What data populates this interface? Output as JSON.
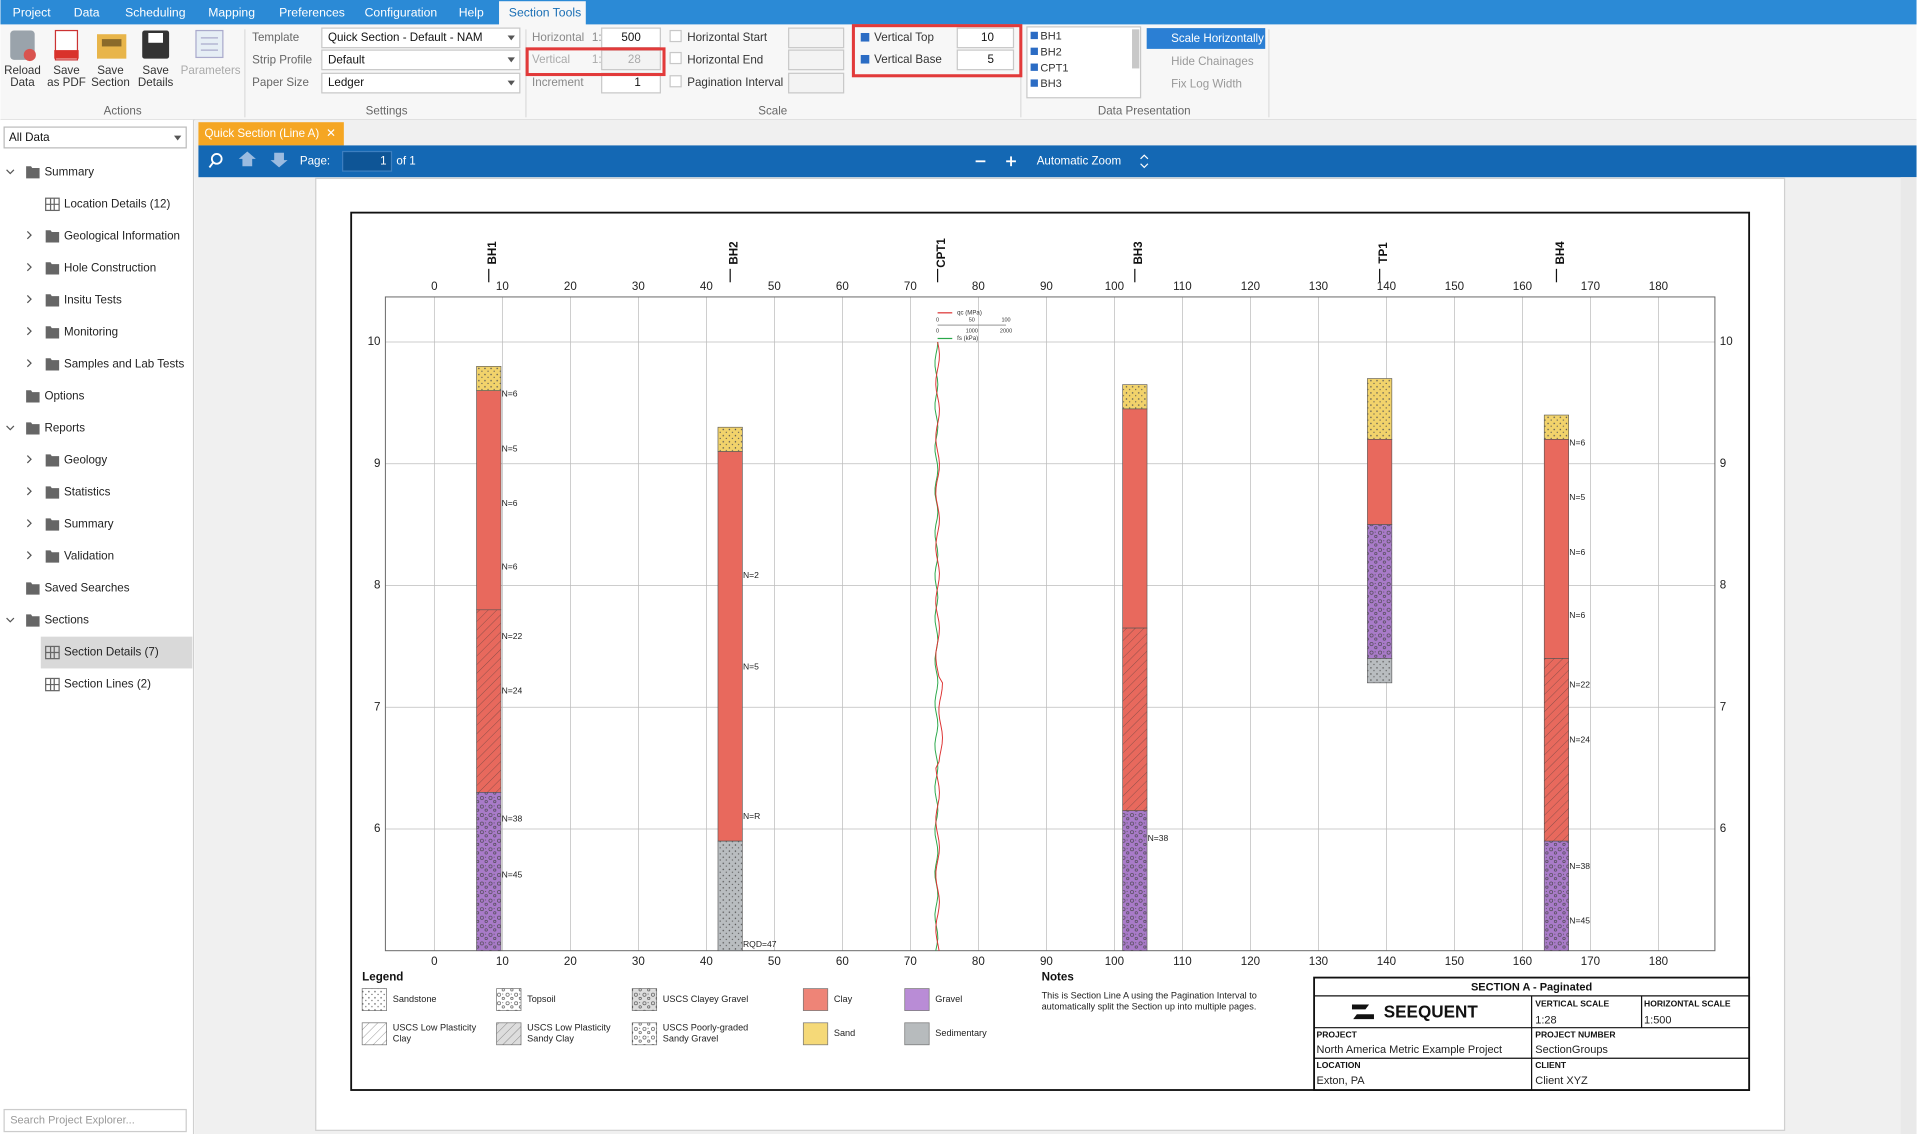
{
  "menu": [
    "Project",
    "Data",
    "Scheduling",
    "Mapping",
    "Preferences",
    "Configuration",
    "Help",
    "Section Tools"
  ],
  "ribbon": {
    "actions": {
      "label": "Actions",
      "buttons": [
        [
          "Reload",
          "Data"
        ],
        [
          "Save",
          "as PDF"
        ],
        [
          "Save",
          "Section"
        ],
        [
          "Save",
          "Details"
        ],
        [
          "Parameters"
        ]
      ]
    },
    "settings": {
      "label": "Settings",
      "template": {
        "label": "Template",
        "value": "Quick Section - Default - NAM"
      },
      "strip_profile": {
        "label": "Strip Profile",
        "value": "Default"
      },
      "paper_size": {
        "label": "Paper Size",
        "value": "Ledger"
      }
    },
    "scale": {
      "label": "Scale",
      "horizontal": {
        "label": "Horizontal",
        "prefix": "1:",
        "value": 500
      },
      "vertical": {
        "label": "Vertical",
        "prefix": "1:",
        "value": 28
      },
      "increment": {
        "label": "Increment",
        "value": 1
      },
      "checks": [
        "Horizontal Start",
        "Horizontal End",
        "Pagination Interval"
      ],
      "vertical_top": {
        "label": "Vertical Top",
        "value": 10
      },
      "vertical_base": {
        "label": "Vertical Base",
        "value": 5
      }
    },
    "data_presentation": {
      "label": "Data Presentation",
      "holes": [
        "BH1",
        "BH2",
        "CPT1",
        "BH3"
      ],
      "options": [
        "Scale Horizontally",
        "Hide Chainages",
        "Fix Log Width"
      ]
    }
  },
  "explorer": {
    "filter": "All Data",
    "search": "Search Project Explorer...",
    "tree": [
      {
        "label": "Summary",
        "children": [
          {
            "label": "Location Details (12)",
            "kind": "table"
          },
          {
            "label": "Geological Information",
            "collapsed": true
          },
          {
            "label": "Hole Construction",
            "collapsed": true
          },
          {
            "label": "Insitu Tests",
            "collapsed": true
          },
          {
            "label": "Monitoring",
            "collapsed": true
          },
          {
            "label": "Samples and Lab Tests",
            "collapsed": true
          }
        ]
      },
      {
        "label": "Options"
      },
      {
        "label": "Reports",
        "children": [
          {
            "label": "Geology",
            "collapsed": true
          },
          {
            "label": "Statistics",
            "collapsed": true
          },
          {
            "label": "Summary",
            "collapsed": true
          },
          {
            "label": "Validation",
            "collapsed": true
          }
        ]
      },
      {
        "label": "Saved Searches"
      },
      {
        "label": "Sections",
        "children": [
          {
            "label": "Section Details (7)",
            "kind": "table",
            "selected": true
          },
          {
            "label": "Section Lines (2)",
            "kind": "table"
          }
        ]
      }
    ]
  },
  "document": {
    "tab": "Quick Section (Line A)",
    "page_label": "Page:",
    "page": 1,
    "of": "of 1",
    "zoom": "Automatic Zoom"
  },
  "section": {
    "xlim": [
      -7.2,
      188.3
    ],
    "ylim": [
      5,
      10.37
    ],
    "xticks": [
      0,
      10,
      20,
      30,
      40,
      50,
      60,
      70,
      80,
      90,
      100,
      110,
      120,
      130,
      140,
      150,
      160,
      170,
      180
    ],
    "yticks": [
      6,
      7,
      8,
      9,
      10
    ],
    "holes": [
      {
        "name": "BH1",
        "x": 8,
        "layers": [
          {
            "top": 9.8,
            "base": 9.6,
            "color": "#f2d36b",
            "pattern": "dots"
          },
          {
            "top": 9.6,
            "base": 7.8,
            "color": "#e8695d"
          },
          {
            "top": 7.8,
            "base": 6.3,
            "color": "#e8695d",
            "pattern": "hatch"
          },
          {
            "top": 6.3,
            "base": 5,
            "color": "#a97bc9",
            "pattern": "gravel"
          }
        ],
        "tests": [
          {
            "label": "N=6",
            "y": 9.57
          },
          {
            "label": "N=5",
            "y": 9.12
          },
          {
            "label": "N=6",
            "y": 8.67
          },
          {
            "label": "N=6",
            "y": 8.15
          },
          {
            "label": "N=22",
            "y": 7.58
          },
          {
            "label": "N=24",
            "y": 7.13
          },
          {
            "label": "N=38",
            "y": 6.08
          },
          {
            "label": "N=45",
            "y": 5.62
          }
        ]
      },
      {
        "name": "BH2",
        "x": 43.5,
        "layers": [
          {
            "top": 9.3,
            "base": 9.1,
            "color": "#f2d36b",
            "pattern": "dots"
          },
          {
            "top": 9.1,
            "base": 5.9,
            "color": "#e8695d"
          },
          {
            "top": 5.9,
            "base": 5,
            "color": "#b9bdc0",
            "pattern": "dots"
          }
        ],
        "tests": [
          {
            "label": "N=2",
            "y": 8.08
          },
          {
            "label": "N=5",
            "y": 7.33
          },
          {
            "label": "N=R",
            "y": 6.1
          },
          {
            "label": "RQD=47",
            "y": 5.05
          }
        ]
      },
      {
        "name": "BH3",
        "x": 103,
        "layers": [
          {
            "top": 9.65,
            "base": 9.45,
            "color": "#f2d36b",
            "pattern": "dots"
          },
          {
            "top": 9.45,
            "base": 7.65,
            "color": "#e8695d"
          },
          {
            "top": 7.65,
            "base": 6.15,
            "color": "#e8695d",
            "pattern": "hatch"
          },
          {
            "top": 6.15,
            "base": 5,
            "color": "#a97bc9",
            "pattern": "gravel"
          }
        ],
        "tests": [
          {
            "label": "N=38",
            "y": 5.92
          }
        ]
      },
      {
        "name": "TP1",
        "x": 139,
        "layers": [
          {
            "top": 9.7,
            "base": 9.2,
            "color": "#f2d36b",
            "pattern": "dots"
          },
          {
            "top": 9.2,
            "base": 8.5,
            "color": "#e8695d"
          },
          {
            "top": 8.5,
            "base": 7.4,
            "color": "#a97bc9",
            "pattern": "gravel"
          },
          {
            "top": 7.4,
            "base": 7.2,
            "color": "#b9bdc0",
            "pattern": "dots"
          }
        ],
        "tests": []
      },
      {
        "name": "BH4",
        "x": 165,
        "layers": [
          {
            "top": 9.4,
            "base": 9.2,
            "color": "#f2d36b",
            "pattern": "dots"
          },
          {
            "top": 9.2,
            "base": 7.4,
            "color": "#e8695d"
          },
          {
            "top": 7.4,
            "base": 5.9,
            "color": "#e8695d",
            "pattern": "hatch"
          },
          {
            "top": 5.9,
            "base": 5,
            "color": "#a97bc9",
            "pattern": "gravel"
          }
        ],
        "tests": [
          {
            "label": "N=6",
            "y": 9.17
          },
          {
            "label": "N=5",
            "y": 8.72
          },
          {
            "label": "N=6",
            "y": 8.27
          },
          {
            "label": "N=6",
            "y": 7.75
          },
          {
            "label": "N=22",
            "y": 7.18
          },
          {
            "label": "N=24",
            "y": 6.73
          },
          {
            "label": "N=38",
            "y": 5.69
          },
          {
            "label": "N=45",
            "y": 5.24
          }
        ]
      }
    ],
    "cpt": {
      "name": "CPT1",
      "x": 74,
      "top": 10,
      "qc": "qc (MPa)",
      "fs": "fs (kPa)",
      "qc_scale": [
        0,
        50,
        100
      ],
      "fs_scale": [
        0,
        1000,
        2000
      ]
    },
    "legend": {
      "title": "Legend",
      "items": [
        {
          "name": [
            "Sandstone"
          ],
          "color": "#ffffff",
          "pattern": "dots"
        },
        {
          "name": [
            "Topsoil"
          ],
          "color": "#ffffff",
          "pattern": "gravel"
        },
        {
          "name": [
            "USCS Clayey Gravel"
          ],
          "color": "#dddddd",
          "pattern": "gravel"
        },
        {
          "name": [
            "Clay"
          ],
          "color": "#ee8477"
        },
        {
          "name": [
            "Gravel"
          ],
          "color": "#b98cd6"
        },
        {
          "name": [
            "USCS Low Plasticity",
            "Clay"
          ],
          "color": "#ffffff",
          "pattern": "hatch"
        },
        {
          "name": [
            "USCS Low Plasticity",
            "Sandy Clay"
          ],
          "color": "#dddddd",
          "pattern": "hatch"
        },
        {
          "name": [
            "USCS Poorly-graded",
            "Sandy Gravel"
          ],
          "color": "#ffffff",
          "pattern": "gravel"
        },
        {
          "name": [
            "Sand"
          ],
          "color": "#f5d978"
        },
        {
          "name": [
            "Sedimentary"
          ],
          "color": "#b7bbbd"
        }
      ]
    },
    "notes": {
      "title": "Notes",
      "text": [
        "This is Section Line A using the Pagination Interval to",
        "automatically split the Section up into multiple pages."
      ]
    },
    "title_block": {
      "title": "SECTION A - Paginated",
      "logo": "SEEQUENT",
      "vertical_scale": {
        "label": "VERTICAL SCALE",
        "value": "1:28"
      },
      "horizontal_scale": {
        "label": "HORIZONTAL SCALE",
        "value": "1:500"
      },
      "project": {
        "label": "PROJECT",
        "value": "North America Metric Example Project"
      },
      "project_number": {
        "label": "PROJECT NUMBER",
        "value": "SectionGroups"
      },
      "location": {
        "label": "LOCATION",
        "value": "Exton, PA"
      },
      "client": {
        "label": "CLIENT",
        "value": "Client XYZ"
      }
    }
  }
}
